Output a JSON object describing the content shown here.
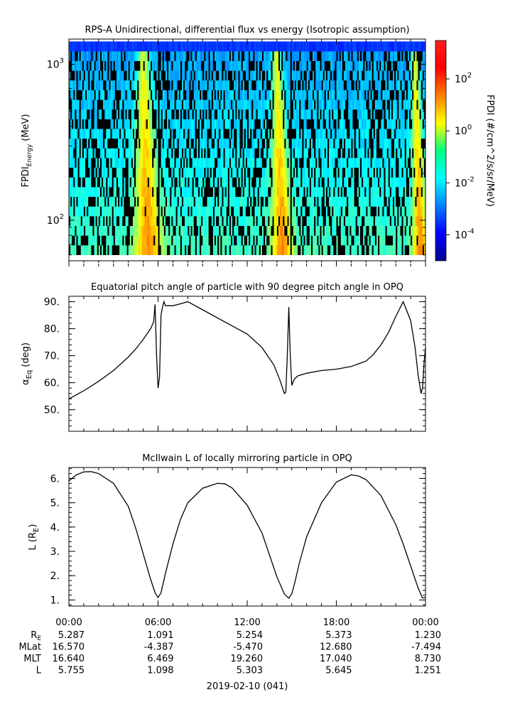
{
  "chart_data": [
    {
      "type": "heatmap",
      "title": "RPS-A Unidirectional, differential flux vs energy (Isotropic assumption)",
      "ylabel_main": "FPDI",
      "ylabel_sub": "Energy",
      "ylabel_unit": " (MeV)",
      "yscale": "log",
      "ylim": [
        55,
        1450
      ],
      "y_ticks": [
        {
          "value": 100,
          "base": "10",
          "exp": "2"
        },
        {
          "value": 1000,
          "base": "10",
          "exp": "3"
        }
      ],
      "energy_channel_range": [
        60,
        1400
      ],
      "x_range_hours": [
        0,
        24
      ],
      "notes": "flux enhancements near 04:30-06:30, 14:00-14:50 and 23:00-24:00; data gaps near 06:00, 14:55",
      "colorbar": {
        "label": "FPDI (#/cm^2/s/sr/MeV)",
        "scale": "log",
        "range": [
          1e-05,
          3000.0
        ],
        "ticks": [
          {
            "value": 100,
            "base": "10",
            "exp": "2"
          },
          {
            "value": 1,
            "base": "10",
            "exp": "0"
          },
          {
            "value": 0.01,
            "base": "10",
            "exp": "-2"
          },
          {
            "value": 0.0001,
            "base": "10",
            "exp": "-4"
          }
        ]
      }
    },
    {
      "type": "line",
      "title": "Equatorial pitch angle of particle with 90 degree pitch angle in OPQ",
      "ylabel": "(deg)",
      "ylabel_symbol": "α",
      "ylabel_sub": "Eq",
      "ylim": [
        42,
        92
      ],
      "y_ticks": [
        "50.",
        "60.",
        "70.",
        "80.",
        "90."
      ],
      "series": [
        {
          "x": [
            0,
            1,
            2,
            3,
            4,
            4.5,
            5,
            5.5,
            5.7,
            5.8,
            5.9,
            6.0,
            6.1,
            6.2,
            6.3,
            6.4,
            6.5,
            7,
            7.5,
            8,
            9,
            10,
            11,
            12,
            13,
            13.8,
            14.2,
            14.5,
            14.6,
            14.7,
            14.8,
            14.9,
            15.0,
            15.1,
            15.2,
            15.4,
            16,
            17,
            18,
            19,
            20,
            20.5,
            21,
            21.5,
            22,
            22.5,
            23,
            23.3,
            23.5,
            23.7,
            23.8,
            23.9,
            24
          ],
          "y": [
            54,
            57,
            60.5,
            64.5,
            69.5,
            72.5,
            76,
            80,
            82.5,
            89,
            70,
            58,
            62,
            85,
            88,
            90,
            88.5,
            88.5,
            89.2,
            90,
            87,
            84,
            81,
            78,
            73,
            66.5,
            61,
            56,
            56.5,
            70,
            88,
            70,
            59,
            60.5,
            61.5,
            62.5,
            63.5,
            64.5,
            65,
            66,
            68,
            70.5,
            74,
            78.5,
            84.5,
            90,
            83,
            73,
            63,
            56,
            58,
            67,
            73
          ]
        }
      ]
    },
    {
      "type": "line",
      "title": "McIlwain L of locally mirroring particle in OPQ",
      "ylabel": "L (R",
      "ylabel_sub": "E",
      "ylabel_close": ")",
      "ylim": [
        0.75,
        6.45
      ],
      "y_ticks": [
        "1.",
        "2.",
        "3.",
        "4.",
        "5.",
        "6."
      ],
      "series": [
        {
          "x": [
            0,
            0.5,
            1,
            1.5,
            2,
            3,
            4,
            4.5,
            5,
            5.5,
            5.8,
            6,
            6.2,
            6.5,
            7,
            7.5,
            8,
            9,
            10,
            10.5,
            11,
            12,
            13,
            13.5,
            14,
            14.5,
            14.8,
            15,
            15.2,
            15.5,
            16,
            17,
            18,
            19,
            19.5,
            20,
            21,
            22,
            22.5,
            23,
            23.5,
            23.8,
            24
          ],
          "y": [
            5.9,
            6.15,
            6.27,
            6.28,
            6.2,
            5.8,
            4.85,
            3.95,
            2.9,
            1.85,
            1.3,
            1.1,
            1.3,
            2.1,
            3.3,
            4.3,
            5.0,
            5.6,
            5.8,
            5.78,
            5.6,
            4.9,
            3.75,
            2.85,
            1.95,
            1.25,
            1.07,
            1.25,
            1.7,
            2.5,
            3.6,
            5.0,
            5.85,
            6.15,
            6.1,
            5.95,
            5.3,
            4.1,
            3.3,
            2.4,
            1.5,
            1.08,
            1.1
          ]
        }
      ]
    }
  ],
  "x_axis": {
    "tick_labels": [
      "00:00",
      "06:00",
      "12:00",
      "18:00",
      "00:00"
    ],
    "tick_hours": [
      0,
      6,
      12,
      18,
      24
    ],
    "date_label": "2019-02-10 (041)"
  },
  "ephemeris": {
    "rows": [
      {
        "label_main": "R",
        "label_sub": "E",
        "values": [
          "5.287",
          "1.091",
          "5.254",
          "5.373",
          "1.230"
        ]
      },
      {
        "label_main": "MLat",
        "label_sub": "",
        "values": [
          "16.570",
          "-4.387",
          "-5.470",
          "12.680",
          "-7.494"
        ]
      },
      {
        "label_main": "MLT",
        "label_sub": "",
        "values": [
          "16.640",
          "6.469",
          "19.260",
          "17.040",
          "8.730"
        ]
      },
      {
        "label_main": "L",
        "label_sub": "",
        "values": [
          "5.755",
          "1.098",
          "5.303",
          "5.645",
          "1.251"
        ]
      }
    ]
  },
  "colors": {
    "line": "#000000",
    "background": "#ffffff"
  }
}
